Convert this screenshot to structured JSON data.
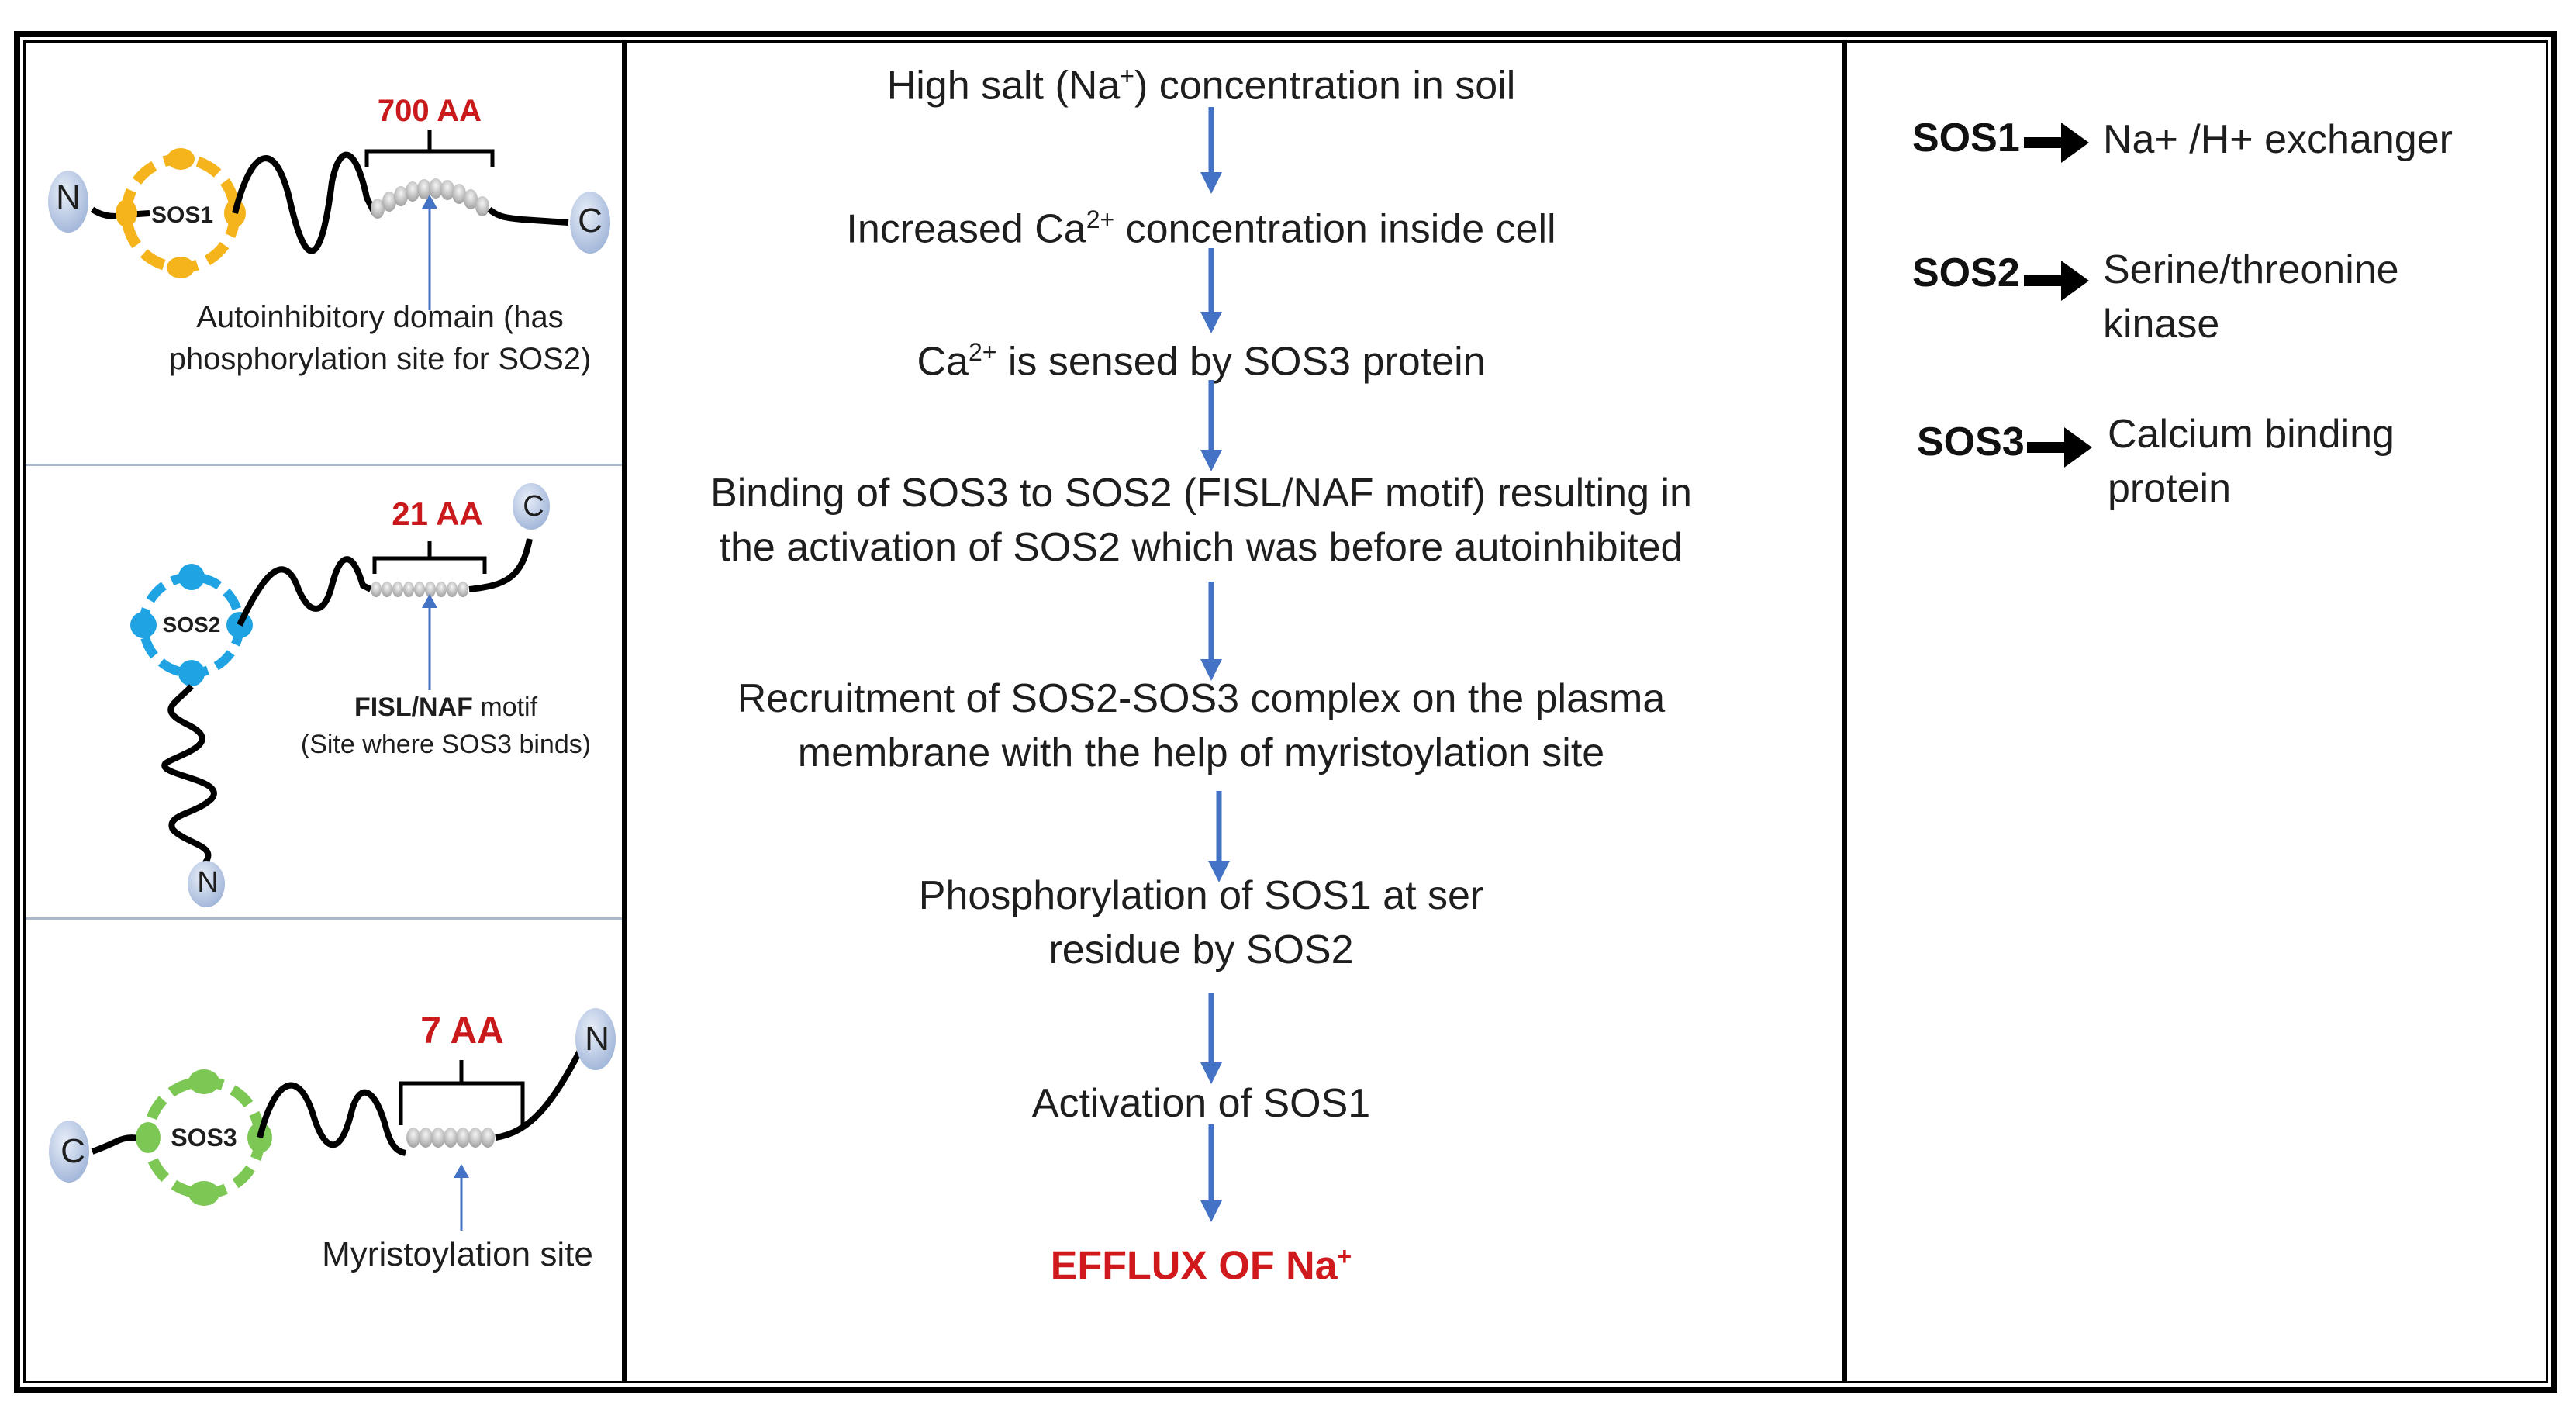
{
  "flow": {
    "steps": [
      {
        "pre": "High salt (Na",
        "sup": "+",
        "post": ") concentration in soil"
      },
      {
        "pre": "Increased Ca",
        "sup": "2+",
        "post": " concentration inside cell"
      },
      {
        "pre": "Ca",
        "sup": "2+",
        "post": " is sensed by SOS3 protein"
      },
      {
        "pre": "Binding of SOS3 to SOS2 (FISL/NAF motif) resulting in\nthe activation of SOS2 which was before autoinhibited",
        "sup": "",
        "post": ""
      },
      {
        "pre": "Recruitment of SOS2-SOS3 complex on the plasma\nmembrane with the help of myristoylation site",
        "sup": "",
        "post": ""
      },
      {
        "pre": "Phosphorylation of SOS1 at ser\nresidue by SOS2",
        "sup": "",
        "post": ""
      },
      {
        "pre": "Activation of SOS1",
        "sup": "",
        "post": ""
      }
    ],
    "final": {
      "pre": "EFFLUX OF Na",
      "sup": "+"
    }
  },
  "legend": [
    {
      "term": "SOS1",
      "desc": "Na+ /H+ exchanger"
    },
    {
      "term": "SOS2",
      "desc": "Serine/threonine\nkinase"
    },
    {
      "term": "SOS3",
      "desc": "Calcium binding\nprotein"
    }
  ],
  "proteins": {
    "sos1": {
      "name": "SOS1",
      "length": "700 AA",
      "n": "N",
      "c": "C",
      "note_line1": "Autoinhibitory domain (has",
      "note_line2": "phosphorylation site for SOS2)"
    },
    "sos2": {
      "name": "SOS2",
      "length": "21 AA",
      "n": "N",
      "c": "C",
      "motif": "FISL/NAF",
      "motif_suffix": " motif",
      "note": "(Site where SOS3 binds)"
    },
    "sos3": {
      "name": "SOS3",
      "length": "7 AA",
      "n": "N",
      "c": "C",
      "note": "Myristoylation site"
    }
  },
  "colors": {
    "arrow": "#4472c4",
    "final_text": "#d0191d",
    "sos1_domain": "#f5b41c",
    "sos2_domain": "#1fa3e3",
    "sos3_domain": "#7dc855",
    "terminal": "#b5c7e6"
  }
}
